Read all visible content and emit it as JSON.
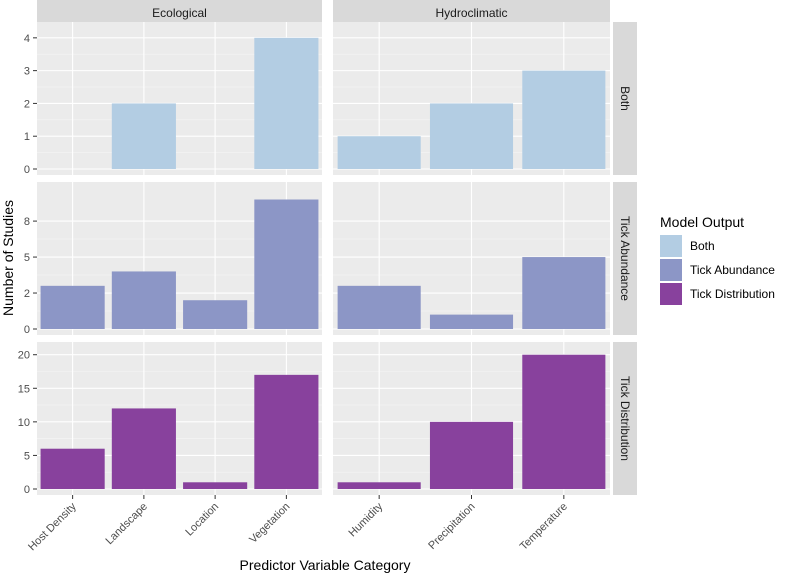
{
  "chart_data": {
    "type": "bar",
    "xlabel": "Predictor Variable Category",
    "ylabel": "Number of Studies",
    "column_facets": [
      {
        "label": "Ecological",
        "categories": [
          "Host Density",
          "Landscape",
          "Location",
          "Vegetation"
        ]
      },
      {
        "label": "Hydroclimatic",
        "categories": [
          "Humidity",
          "Precipitation",
          "Temperature"
        ]
      }
    ],
    "row_facets": [
      {
        "label": "Both",
        "series": "Both",
        "color": "#b3cde3",
        "ylim": [
          0,
          4.3
        ],
        "ticks": [
          0,
          1,
          2,
          3,
          4
        ],
        "tick_labels": [
          "0",
          "1",
          "2",
          "3",
          "4"
        ],
        "values": {
          "Ecological": [
            0,
            2,
            0,
            4
          ],
          "Hydroclimatic": [
            1,
            2,
            3
          ]
        }
      },
      {
        "label": "Tick Abundance",
        "series": "Tick Abundance",
        "color": "#8c96c6",
        "ylim": [
          0,
          9.8
        ],
        "ticks": [
          0,
          2.5,
          5,
          7.5
        ],
        "tick_labels": [
          "0",
          "2",
          "5",
          "8"
        ],
        "values": {
          "Ecological": [
            3,
            4,
            2,
            9
          ],
          "Hydroclimatic": [
            3,
            1,
            5
          ]
        }
      },
      {
        "label": "Tick Distribution",
        "series": "Tick Distribution",
        "color": "#88419d",
        "ylim": [
          0,
          21
        ],
        "ticks": [
          0,
          5,
          10,
          15,
          20
        ],
        "tick_labels": [
          "0",
          "5",
          "10",
          "15",
          "20"
        ],
        "values": {
          "Ecological": [
            6,
            12,
            1,
            17
          ],
          "Hydroclimatic": [
            1,
            10,
            20
          ]
        }
      }
    ],
    "legend": {
      "title": "Model Output",
      "position": "right",
      "entries": [
        {
          "label": "Both",
          "color": "#b3cde3"
        },
        {
          "label": "Tick Abundance",
          "color": "#8c96c6"
        },
        {
          "label": "Tick Distribution",
          "color": "#88419d"
        }
      ]
    },
    "panel_background": "#ebebeb",
    "strip_background": "#d9d9d9",
    "grid": true
  }
}
